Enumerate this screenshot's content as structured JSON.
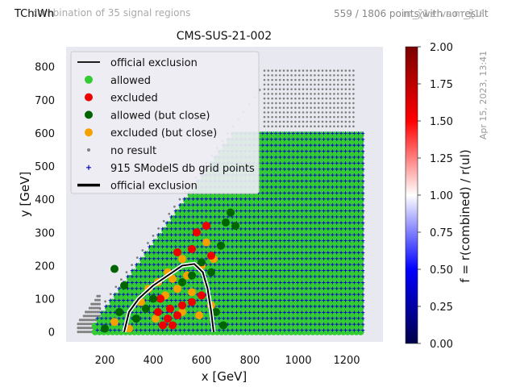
{
  "header": {
    "left_text": "TChiWh",
    "left_ghost": "combination of 35 signal regions",
    "right_text": "559 / 1806 points with no result",
    "right_ghost": "m_χ̃1± vs m_χ̃1⁰"
  },
  "timestamp": "Apr 15, 2023, 13:41",
  "colorbar": {
    "label": "f = r(combined) / r(ul)",
    "ticks": [
      "0.00",
      "0.25",
      "0.50",
      "0.75",
      "1.00",
      "1.25",
      "1.50",
      "1.75",
      "2.00"
    ],
    "cmap_colors": [
      "#00004a",
      "#0000ff",
      "#ffffff",
      "#ff0000",
      "#7a0000"
    ]
  },
  "chart_data": {
    "type": "scatter",
    "title": "CMS-SUS-21-002",
    "xlabel": "x [GeV]",
    "ylabel": "y [GeV]",
    "xlim": [
      40,
      1350
    ],
    "ylim": [
      -30,
      860
    ],
    "xticks": [
      200,
      400,
      600,
      800,
      1000,
      1200
    ],
    "yticks": [
      0,
      100,
      200,
      300,
      400,
      500,
      600,
      700,
      800
    ],
    "grid": false,
    "background": "#e8e8f0",
    "legend_position": "upper-left",
    "legend": [
      {
        "label": "official exclusion",
        "marker": "line",
        "color": "#000000"
      },
      {
        "label": "allowed",
        "marker": "circle",
        "color": "#33cc33"
      },
      {
        "label": "excluded",
        "marker": "circle",
        "color": "#ee0000"
      },
      {
        "label": "allowed (but close)",
        "marker": "circle",
        "color": "#006400"
      },
      {
        "label": "excluded (but close)",
        "marker": "circle",
        "color": "#f4a000"
      },
      {
        "label": "no result",
        "marker": "dot",
        "color": "#808080"
      },
      {
        "label": "915 SModelS db grid points",
        "marker": "plus",
        "color": "#0000cc"
      },
      {
        "label": "official exclusion",
        "marker": "thickline",
        "color": "#000000"
      }
    ],
    "series": [
      {
        "name": "allowed",
        "color": "#33cc33",
        "region": {
          "x_range": [
            160,
            1270
          ],
          "y_max_rule": "y <= x - 130",
          "y_cap_low_x": 600,
          "y_cap_high_x": 610,
          "x_split": 830
        }
      },
      {
        "name": "excluded",
        "color": "#ee0000",
        "points": [
          [
            440,
            20
          ],
          [
            460,
            40
          ],
          [
            480,
            20
          ],
          [
            500,
            50
          ],
          [
            470,
            70
          ],
          [
            520,
            80
          ],
          [
            420,
            60
          ],
          [
            560,
            90
          ],
          [
            600,
            110
          ],
          [
            580,
            300
          ],
          [
            620,
            320
          ],
          [
            640,
            230
          ],
          [
            560,
            250
          ],
          [
            500,
            240
          ],
          [
            430,
            100
          ]
        ]
      },
      {
        "name": "allowed (but close)",
        "color": "#006400",
        "points": [
          [
            200,
            10
          ],
          [
            260,
            60
          ],
          [
            330,
            40
          ],
          [
            370,
            70
          ],
          [
            400,
            100
          ],
          [
            520,
            150
          ],
          [
            560,
            170
          ],
          [
            600,
            210
          ],
          [
            640,
            180
          ],
          [
            680,
            260
          ],
          [
            700,
            330
          ],
          [
            720,
            360
          ],
          [
            740,
            320
          ],
          [
            660,
            60
          ],
          [
            690,
            20
          ],
          [
            280,
            140
          ],
          [
            240,
            190
          ]
        ]
      },
      {
        "name": "excluded (but close)",
        "color": "#f4a000",
        "points": [
          [
            240,
            30
          ],
          [
            300,
            10
          ],
          [
            350,
            90
          ],
          [
            380,
            130
          ],
          [
            420,
            150
          ],
          [
            460,
            180
          ],
          [
            500,
            130
          ],
          [
            540,
            170
          ],
          [
            600,
            200
          ],
          [
            620,
            270
          ],
          [
            650,
            220
          ],
          [
            560,
            120
          ],
          [
            410,
            40
          ],
          [
            450,
            110
          ],
          [
            520,
            60
          ],
          [
            590,
            50
          ],
          [
            640,
            80
          ],
          [
            520,
            220
          ],
          [
            480,
            160
          ]
        ]
      },
      {
        "name": "no result",
        "color": "#808080",
        "region": "outer band along diagonal, low-x corner and upper region 830<x<1230, 620<y<800"
      },
      {
        "name": "official exclusion",
        "color": "#000000",
        "points": [
          [
            280,
            0
          ],
          [
            300,
            60
          ],
          [
            340,
            100
          ],
          [
            400,
            140
          ],
          [
            460,
            170
          ],
          [
            520,
            200
          ],
          [
            570,
            205
          ],
          [
            605,
            180
          ],
          [
            625,
            130
          ],
          [
            640,
            60
          ],
          [
            650,
            0
          ]
        ]
      }
    ]
  }
}
